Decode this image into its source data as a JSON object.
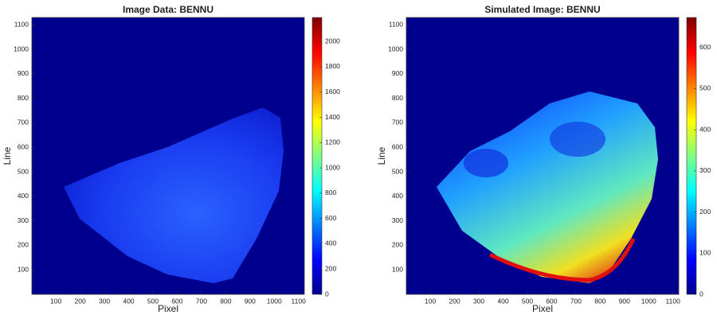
{
  "chart_data": [
    {
      "type": "heatmap",
      "title": "Image Data: BENNU",
      "xlabel": "Pixel",
      "ylabel": "Line",
      "xlim": [
        1,
        1124
      ],
      "ylim": [
        0,
        1130
      ],
      "xticks": [
        100,
        200,
        300,
        400,
        500,
        600,
        700,
        800,
        900,
        1000,
        1100
      ],
      "yticks": [
        100,
        200,
        300,
        400,
        500,
        600,
        700,
        800,
        900,
        1000,
        1100
      ],
      "colormap": "jet",
      "clim": [
        0,
        2190
      ],
      "cticks": [
        0,
        200,
        400,
        600,
        800,
        1000,
        1200,
        1400,
        1600,
        1800,
        2000
      ]
    },
    {
      "type": "heatmap",
      "title": "Simulated Image: BENNU",
      "xlabel": "Pixel",
      "ylabel": "Line",
      "xlim": [
        1,
        1124
      ],
      "ylim": [
        0,
        1130
      ],
      "xticks": [
        100,
        200,
        300,
        400,
        500,
        600,
        700,
        800,
        900,
        1000,
        1100
      ],
      "yticks": [
        100,
        200,
        300,
        400,
        500,
        600,
        700,
        800,
        900,
        1000,
        1100
      ],
      "colormap": "jet",
      "clim": [
        0,
        673
      ],
      "cticks": [
        0,
        100,
        200,
        300,
        400,
        500,
        600
      ]
    }
  ]
}
